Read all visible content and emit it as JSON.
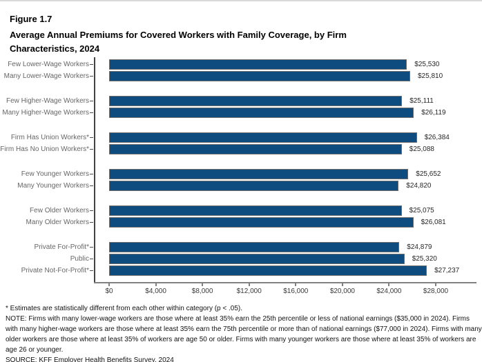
{
  "title": {
    "figure_label": "Figure 1.7",
    "text": "Average Annual Premiums for Covered Workers with Family Coverage, by Firm Characteristics, 2024"
  },
  "chart_data": {
    "type": "bar",
    "orientation": "horizontal",
    "title": "Average Annual Premiums for Covered Workers with Family Coverage, by Firm Characteristics, 2024",
    "xlim": [
      0,
      28000
    ],
    "x_tick_values": [
      0,
      4000,
      8000,
      12000,
      16000,
      20000,
      24000,
      28000
    ],
    "x_tick_labels": [
      "$0",
      "$4,000",
      "$8,000",
      "$12,000",
      "$16,000",
      "$20,000",
      "$24,000",
      "$28,000"
    ],
    "grid": false,
    "legend": false,
    "bar_color": "#0e4c80",
    "bar_border_color": "#6f6f6f",
    "groups": [
      {
        "rows": [
          {
            "category": "Few Lower-Wage Workers",
            "value": 25530,
            "value_label": "$25,530"
          },
          {
            "category": "Many Lower-Wage Workers",
            "value": 25810,
            "value_label": "$25,810"
          }
        ]
      },
      {
        "rows": [
          {
            "category": "Few Higher-Wage Workers",
            "value": 25111,
            "value_label": "$25,111"
          },
          {
            "category": "Many Higher-Wage Workers",
            "value": 26119,
            "value_label": "$26,119"
          }
        ]
      },
      {
        "rows": [
          {
            "category": "Firm Has Union Workers*",
            "value": 26384,
            "value_label": "$26,384"
          },
          {
            "category": "Firm Has No Union Workers*",
            "value": 25088,
            "value_label": "$25,088"
          }
        ]
      },
      {
        "rows": [
          {
            "category": "Few Younger Workers",
            "value": 25652,
            "value_label": "$25,652"
          },
          {
            "category": "Many Younger Workers",
            "value": 24820,
            "value_label": "$24,820"
          }
        ]
      },
      {
        "rows": [
          {
            "category": "Few Older Workers",
            "value": 25075,
            "value_label": "$25,075"
          },
          {
            "category": "Many Older Workers",
            "value": 26081,
            "value_label": "$26,081"
          }
        ]
      },
      {
        "rows": [
          {
            "category": "Private For-Profit*",
            "value": 24879,
            "value_label": "$24,879"
          },
          {
            "category": "Public",
            "value": 25320,
            "value_label": "$25,320"
          },
          {
            "category": "Private Not-For-Profit*",
            "value": 27237,
            "value_label": "$27,237"
          }
        ]
      }
    ]
  },
  "footnotes": {
    "significance": "* Estimates are statistically different from each other within category (p < .05).",
    "note": "NOTE: Firms with many lower-wage workers are those where at least 35% earn the 25th percentile or less of national earnings ($35,000 in 2024). Firms with many higher-wage workers are those where at least 35% earn the 75th percentile or more than of national earnings ($77,000 in 2024). Firms with many older workers are those where at least 35% of workers are age 50 or older. Firms with many younger workers are those where at least 35% of workers are age 26 or younger.",
    "source": "SOURCE: KFF Employer Health Benefits Survey, 2024"
  }
}
